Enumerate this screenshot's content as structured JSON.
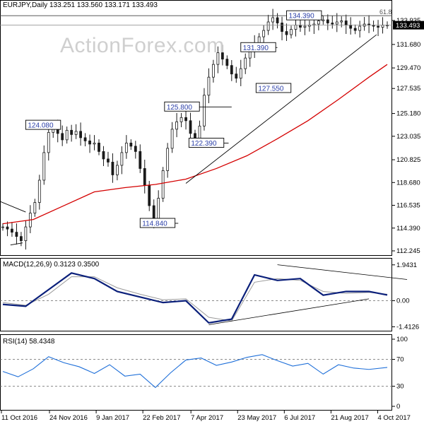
{
  "chart_data": [
    {
      "type": "candlestick",
      "panel": "price",
      "title": "EURJPY,Daily",
      "ohlc": [
        "133.251",
        "133.560",
        "133.171",
        "133.493"
      ],
      "last_price": "133.493",
      "ylim": [
        112.245,
        135.2
      ],
      "yticks": [
        "133.935",
        "131.680",
        "129.470",
        "127.535",
        "125.180",
        "123.035",
        "120.825",
        "118.680",
        "116.535",
        "114.390",
        "112.245"
      ],
      "series": [
        {
          "x": [
            0,
            3,
            6,
            9,
            12,
            15,
            18,
            21,
            24,
            27,
            30,
            33,
            36,
            39,
            42,
            45,
            48,
            51,
            54,
            57,
            60,
            63,
            66,
            69,
            72,
            75,
            78,
            81,
            84,
            87,
            90,
            93,
            96,
            99,
            102,
            105,
            108,
            111,
            114,
            117,
            120,
            123,
            126,
            129,
            132,
            135,
            138,
            141,
            144,
            147,
            150,
            153,
            156,
            159,
            162,
            165,
            168,
            171,
            174,
            177,
            180,
            183,
            186,
            189,
            192,
            195,
            198,
            201,
            204,
            207,
            210,
            213,
            216,
            219,
            222,
            225,
            228,
            231,
            234,
            237,
            240,
            243,
            246,
            249,
            252
          ],
          "y": [
            114.5,
            114.3,
            114.0,
            113.6,
            113.2,
            114.5,
            115.8,
            116.8,
            118.9,
            121.5,
            123.4,
            124.0,
            123.3,
            122.7,
            123.6,
            123.2,
            123.5,
            122.9,
            122.6,
            122.3,
            122.4,
            121.6,
            120.9,
            120.6,
            119.4,
            120.3,
            121.5,
            122.4,
            122.1,
            121.6,
            120.0,
            118.4,
            116.5,
            115.2,
            117.2,
            119.8,
            121.9,
            123.7,
            124.4,
            124.8,
            124.5,
            123.3,
            122.7,
            124.0,
            126.9,
            128.6,
            129.8,
            130.9,
            130.3,
            129.7,
            128.9,
            128.5,
            129.4,
            130.4,
            131.0,
            131.8,
            132.4,
            133.0,
            133.8,
            134.2,
            133.7,
            132.9,
            132.6,
            133.1,
            133.5,
            133.3,
            133.4,
            133.5,
            133.6,
            133.9,
            134.0,
            133.7,
            133.6,
            133.8,
            133.9,
            133.5,
            133.2,
            133.0,
            133.4,
            133.6,
            133.5,
            133.4,
            133.3,
            133.5,
            133.5
          ]
        },
        {
          "name": "red MA",
          "x": [
            0,
            20,
            40,
            60,
            80,
            100,
            120,
            140,
            160,
            180,
            200,
            220,
            240,
            252
          ],
          "y": [
            114.8,
            115.2,
            116.5,
            117.8,
            118.2,
            118.5,
            119.0,
            120.0,
            121.2,
            122.8,
            124.5,
            126.5,
            128.6,
            129.8
          ]
        }
      ],
      "x_axis_dates": [
        "11 Oct 2016",
        "24 Nov 2016",
        "9 Jan 2017",
        "22 Feb 2017",
        "7 Apr 2017",
        "23 May 2017",
        "6 Jul 2017",
        "21 Aug 2017",
        "4 Oct 2017"
      ],
      "annotations": [
        "134.390",
        "131.390",
        "127.550",
        "125.800",
        "124.080",
        "122.390",
        "114.840",
        "61.8"
      ]
    },
    {
      "type": "line",
      "panel": "macd",
      "title": "MACD(12,26,9) 0.3123 0.3500",
      "yticks": [
        "1.9431",
        "0.00",
        "-1.4126"
      ],
      "ylim": [
        -1.55,
        2.05
      ],
      "series": [
        {
          "name": "MACD",
          "x": [
            0,
            15,
            30,
            45,
            60,
            75,
            90,
            105,
            120,
            135,
            150,
            165,
            180,
            195,
            210,
            225,
            240,
            252
          ],
          "y": [
            -0.2,
            -0.3,
            0.6,
            1.5,
            1.2,
            0.5,
            0.2,
            -0.1,
            0.0,
            -1.2,
            -1.0,
            1.4,
            1.1,
            1.2,
            0.3,
            0.5,
            0.5,
            0.31
          ]
        },
        {
          "name": "Signal",
          "x": [
            0,
            15,
            30,
            45,
            60,
            75,
            90,
            105,
            120,
            135,
            150,
            165,
            180,
            195,
            210,
            225,
            240,
            252
          ],
          "y": [
            -0.1,
            -0.25,
            0.35,
            1.3,
            1.3,
            0.7,
            0.35,
            0.05,
            0.1,
            -0.9,
            -1.1,
            1.0,
            1.2,
            1.1,
            0.5,
            0.4,
            0.45,
            0.35
          ]
        }
      ]
    },
    {
      "type": "line",
      "panel": "rsi",
      "title": "RSI(14) 58.4348",
      "yticks": [
        "100",
        "70",
        "30",
        "0"
      ],
      "ylim": [
        0,
        100
      ],
      "series": [
        {
          "name": "RSI",
          "x": [
            0,
            10,
            20,
            30,
            40,
            50,
            60,
            70,
            80,
            90,
            100,
            110,
            120,
            130,
            140,
            150,
            160,
            170,
            180,
            190,
            200,
            210,
            220,
            230,
            240,
            252
          ],
          "y": [
            52,
            44,
            56,
            74,
            65,
            59,
            49,
            62,
            45,
            48,
            28,
            50,
            69,
            72,
            61,
            66,
            73,
            77,
            68,
            60,
            64,
            48,
            62,
            57,
            55,
            58
          ]
        }
      ]
    }
  ]
}
